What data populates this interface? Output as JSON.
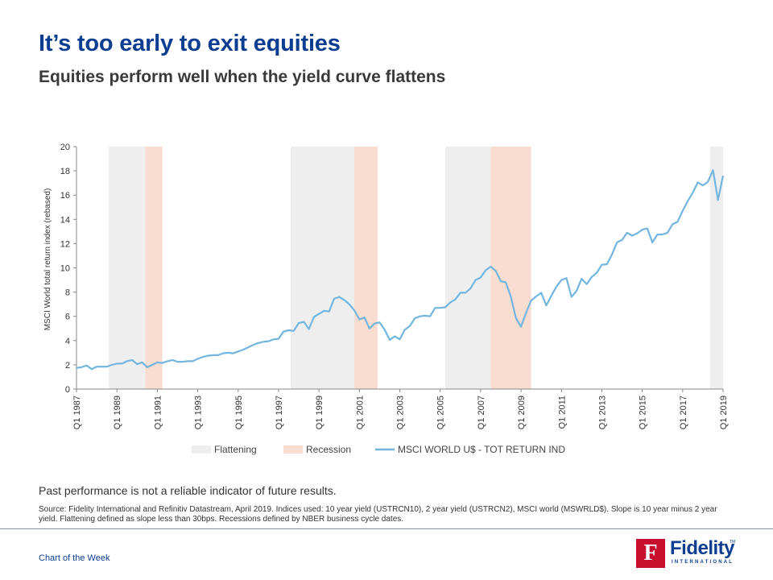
{
  "header": {
    "title": "It’s too early to exit equities",
    "subtitle": "Equities perform well when the yield curve flattens"
  },
  "chart_data": {
    "type": "line",
    "ylabel": "MSCI World total return index (rebased)",
    "ylim": [
      0,
      20
    ],
    "yticks": [
      0,
      2,
      4,
      6,
      8,
      10,
      12,
      14,
      16,
      18,
      20
    ],
    "x_start": 1987.0,
    "x_end": 2019.0,
    "x_tick_labels": [
      "Q1 1987",
      "Q1 1989",
      "Q1 1991",
      "Q1 1993",
      "Q1 1995",
      "Q1 1997",
      "Q1 1999",
      "Q1 2001",
      "Q1 2003",
      "Q1 2005",
      "Q1 2007",
      "Q1 2009",
      "Q1 2011",
      "Q1 2013",
      "Q1 2015",
      "Q1 2017",
      "Q1 2019"
    ],
    "x_tick_values": [
      1987,
      1989,
      1991,
      1993,
      1995,
      1997,
      1999,
      2001,
      2003,
      2005,
      2007,
      2009,
      2011,
      2013,
      2015,
      2017,
      2019
    ],
    "legend_position": "bottom",
    "shaded_regions": [
      {
        "kind": "Flattening",
        "start": 1988.6,
        "end": 1990.4
      },
      {
        "kind": "Recession",
        "start": 1990.4,
        "end": 1991.25
      },
      {
        "kind": "Flattening",
        "start": 1997.6,
        "end": 2000.75
      },
      {
        "kind": "Recession",
        "start": 2000.75,
        "end": 2001.9
      },
      {
        "kind": "Flattening",
        "start": 2005.25,
        "end": 2007.5
      },
      {
        "kind": "Recession",
        "start": 2007.5,
        "end": 2009.5
      },
      {
        "kind": "Flattening",
        "start": 2018.35,
        "end": 2019.0
      }
    ],
    "legend": [
      {
        "key": "flattening",
        "label": "Flattening",
        "color": "#eeeeee"
      },
      {
        "key": "recession",
        "label": "Recession",
        "color": "#f8ddd0"
      },
      {
        "key": "msci",
        "label": "MSCI WORLD U$ - TOT RETURN IND",
        "color": "#72b6df"
      }
    ],
    "series": [
      {
        "name": "MSCI WORLD U$ - TOT RETURN IND",
        "color": "#72b6df",
        "x": [
          1987.0,
          1987.25,
          1987.5,
          1987.75,
          1988.0,
          1988.25,
          1988.5,
          1988.75,
          1989.0,
          1989.25,
          1989.5,
          1989.75,
          1990.0,
          1990.25,
          1990.5,
          1990.75,
          1991.0,
          1991.25,
          1991.5,
          1991.75,
          1992.0,
          1992.25,
          1992.5,
          1992.75,
          1993.0,
          1993.25,
          1993.5,
          1993.75,
          1994.0,
          1994.25,
          1994.5,
          1994.75,
          1995.0,
          1995.25,
          1995.5,
          1995.75,
          1996.0,
          1996.25,
          1996.5,
          1996.75,
          1997.0,
          1997.25,
          1997.5,
          1997.75,
          1998.0,
          1998.25,
          1998.5,
          1998.75,
          1999.0,
          1999.25,
          1999.5,
          1999.75,
          2000.0,
          2000.25,
          2000.5,
          2000.75,
          2001.0,
          2001.25,
          2001.5,
          2001.75,
          2002.0,
          2002.25,
          2002.5,
          2002.75,
          2003.0,
          2003.25,
          2003.5,
          2003.75,
          2004.0,
          2004.25,
          2004.5,
          2004.75,
          2005.0,
          2005.25,
          2005.5,
          2005.75,
          2006.0,
          2006.25,
          2006.5,
          2006.75,
          2007.0,
          2007.25,
          2007.5,
          2007.75,
          2008.0,
          2008.25,
          2008.5,
          2008.75,
          2009.0,
          2009.25,
          2009.5,
          2009.75,
          2010.0,
          2010.25,
          2010.5,
          2010.75,
          2011.0,
          2011.25,
          2011.5,
          2011.75,
          2012.0,
          2012.25,
          2012.5,
          2012.75,
          2013.0,
          2013.25,
          2013.5,
          2013.75,
          2014.0,
          2014.25,
          2014.5,
          2014.75,
          2015.0,
          2015.25,
          2015.5,
          2015.75,
          2016.0,
          2016.25,
          2016.5,
          2016.75,
          2017.0,
          2017.25,
          2017.5,
          2017.75,
          2018.0,
          2018.25,
          2018.5,
          2018.75,
          2019.0
        ],
        "values": [
          1.75,
          1.8,
          1.95,
          1.65,
          1.85,
          1.85,
          1.85,
          2.0,
          2.1,
          2.1,
          2.3,
          2.4,
          2.05,
          2.2,
          1.8,
          2.0,
          2.2,
          2.15,
          2.3,
          2.4,
          2.25,
          2.25,
          2.3,
          2.3,
          2.5,
          2.65,
          2.75,
          2.8,
          2.8,
          2.95,
          3.0,
          2.95,
          3.1,
          3.25,
          3.45,
          3.65,
          3.8,
          3.9,
          3.95,
          4.1,
          4.15,
          4.75,
          4.85,
          4.8,
          5.45,
          5.55,
          4.95,
          5.95,
          6.2,
          6.45,
          6.4,
          7.45,
          7.6,
          7.35,
          7.0,
          6.5,
          5.75,
          5.9,
          5.0,
          5.4,
          5.5,
          4.9,
          4.05,
          4.35,
          4.1,
          4.9,
          5.2,
          5.85,
          6.0,
          6.05,
          6.0,
          6.7,
          6.7,
          6.75,
          7.15,
          7.4,
          7.95,
          7.95,
          8.3,
          9.0,
          9.2,
          9.8,
          10.1,
          9.75,
          8.9,
          8.8,
          7.6,
          5.85,
          5.15,
          6.3,
          7.3,
          7.65,
          7.95,
          6.9,
          7.7,
          8.45,
          9.0,
          9.15,
          7.6,
          8.1,
          9.1,
          8.65,
          9.25,
          9.6,
          10.25,
          10.3,
          11.1,
          12.1,
          12.3,
          12.9,
          12.65,
          12.85,
          13.15,
          13.25,
          12.1,
          12.75,
          12.75,
          12.9,
          13.6,
          13.8,
          14.7,
          15.5,
          16.2,
          17.05,
          16.8,
          17.1,
          18.05,
          15.6,
          17.6
        ]
      }
    ]
  },
  "footer": {
    "disclaimer": "Past performance is not a reliable indicator of future results.",
    "source": "Source: Fidelity International and Refinitiv Datastream, April 2019. Indices used: 10 year yield (USTRCN10),  2 year yield (USTRCN2),  MSCI  world (MSWRLD$). Slope is 10 year minus 2 year yield. Flattening defined as slope less than 30bps. Recessions defined by NBER  business cycle dates.",
    "label": "Chart of the Week",
    "logo_text": "Fidelity",
    "logo_sub": "INTERNATIONAL",
    "logo_mark": "F",
    "logo_tm": "TM"
  }
}
